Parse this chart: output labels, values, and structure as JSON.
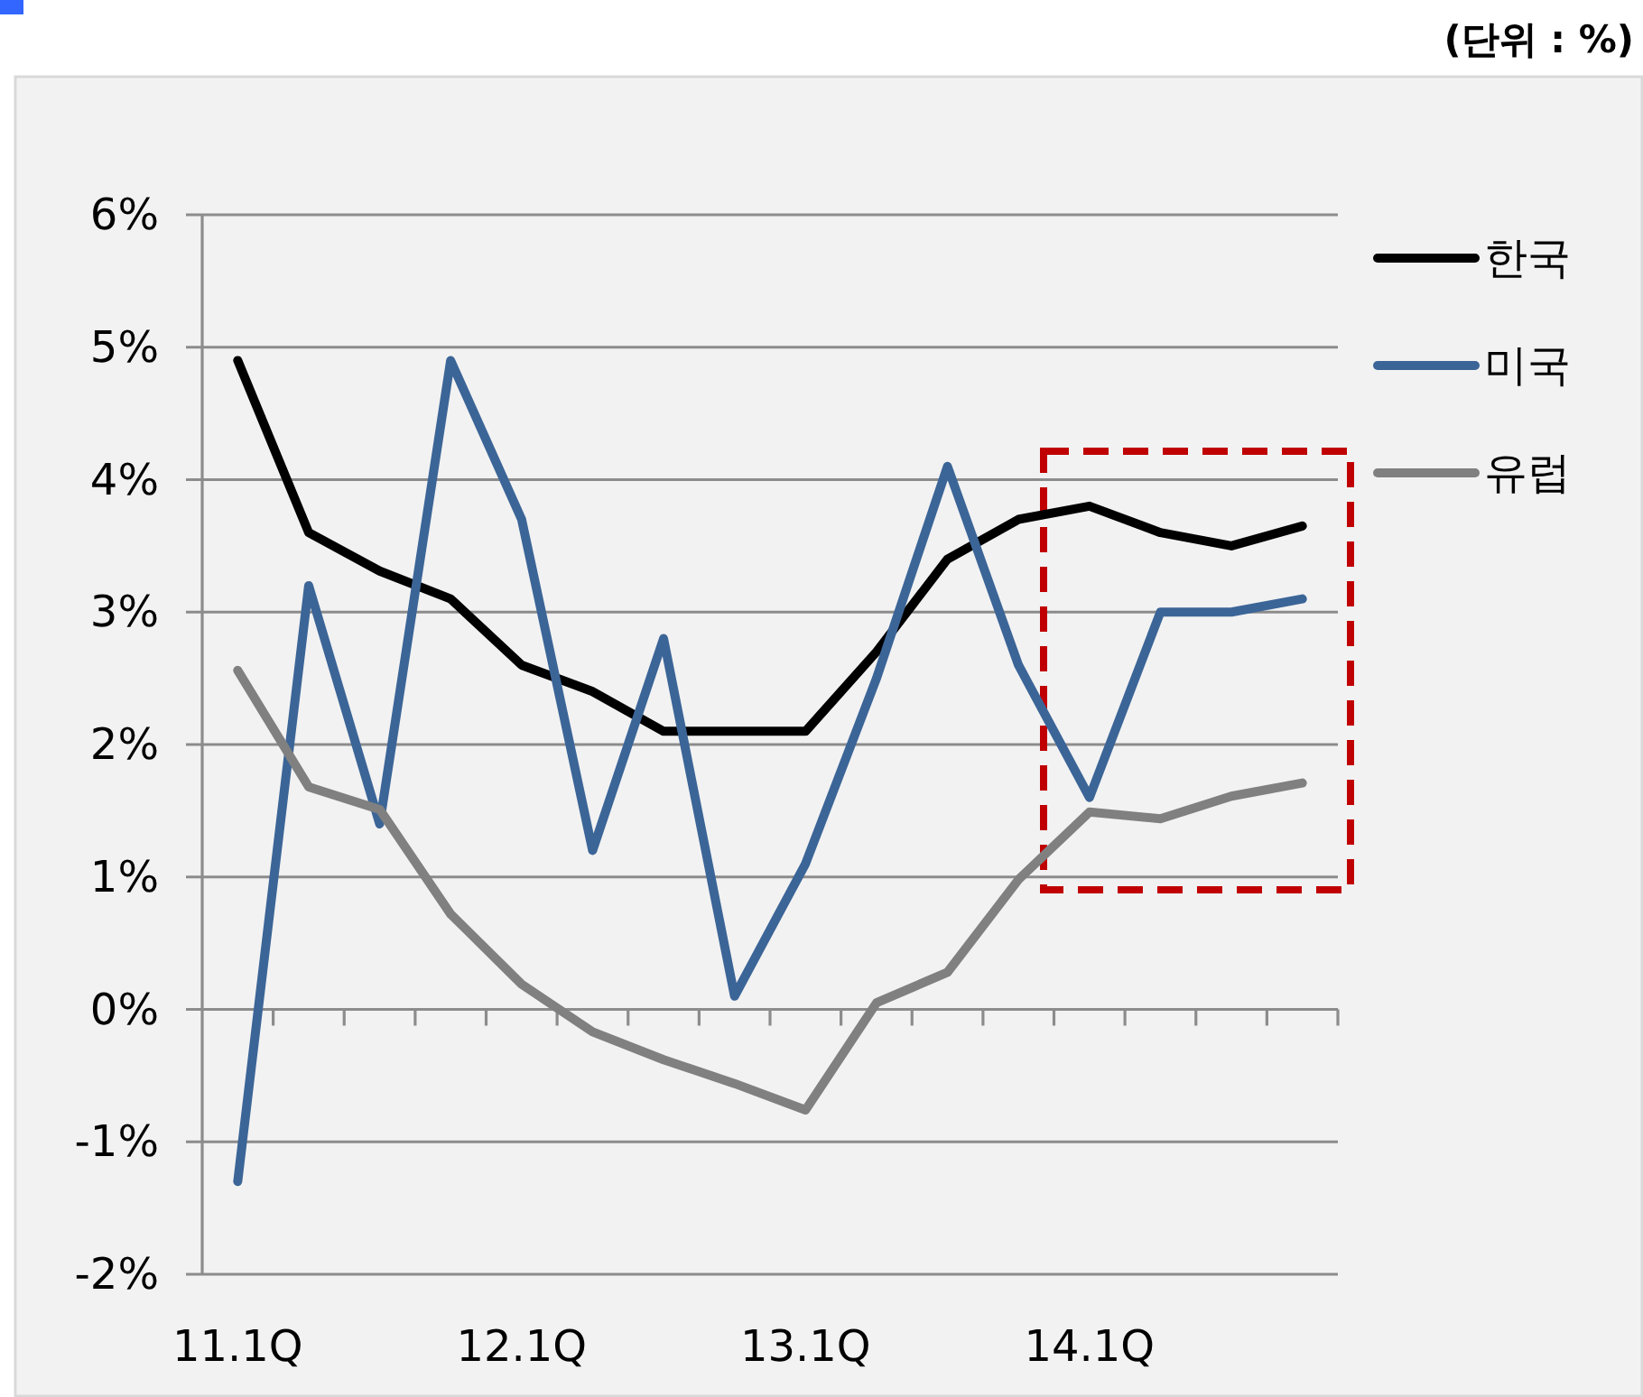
{
  "chart_data": {
    "type": "line",
    "annotations": [
      "(단위 : %)"
    ],
    "categories": [
      "11.1Q",
      null,
      null,
      null,
      "12.1Q",
      null,
      null,
      null,
      "13.1Q",
      null,
      null,
      null,
      "14.1Q",
      null,
      null,
      null
    ],
    "series": [
      {
        "name": "한국",
        "color": "#000000",
        "values": [
          4.9,
          3.6,
          3.31,
          3.1,
          2.6,
          2.4,
          2.1,
          2.1,
          2.1,
          2.7,
          3.4,
          3.7,
          3.8,
          3.6,
          3.5,
          3.65
        ]
      },
      {
        "name": "미국",
        "color": "#3c6597",
        "values": [
          -1.3,
          3.2,
          1.4,
          4.9,
          3.7,
          1.2,
          2.8,
          0.1,
          1.1,
          2.5,
          4.1,
          2.6,
          1.6,
          3.0,
          3.0,
          3.1
        ]
      },
      {
        "name": "유럽",
        "color": "#808080",
        "values": [
          2.56,
          1.68,
          1.51,
          0.72,
          0.19,
          -0.17,
          -0.38,
          -0.56,
          -0.76,
          0.05,
          0.28,
          0.98,
          1.49,
          1.44,
          1.61,
          1.71
        ]
      }
    ],
    "ylim": [
      -2,
      6
    ],
    "yticks": [
      {
        "value": -2,
        "label": "-2%"
      },
      {
        "value": -1,
        "label": "-1%"
      },
      {
        "value": 0,
        "label": "0%"
      },
      {
        "value": 1,
        "label": "1%"
      },
      {
        "value": 2,
        "label": "2%"
      },
      {
        "value": 3,
        "label": "3%"
      },
      {
        "value": 4,
        "label": "4%"
      },
      {
        "value": 5,
        "label": "5%"
      },
      {
        "value": 6,
        "label": "6%"
      }
    ],
    "grid": "y",
    "legend": "right"
  }
}
